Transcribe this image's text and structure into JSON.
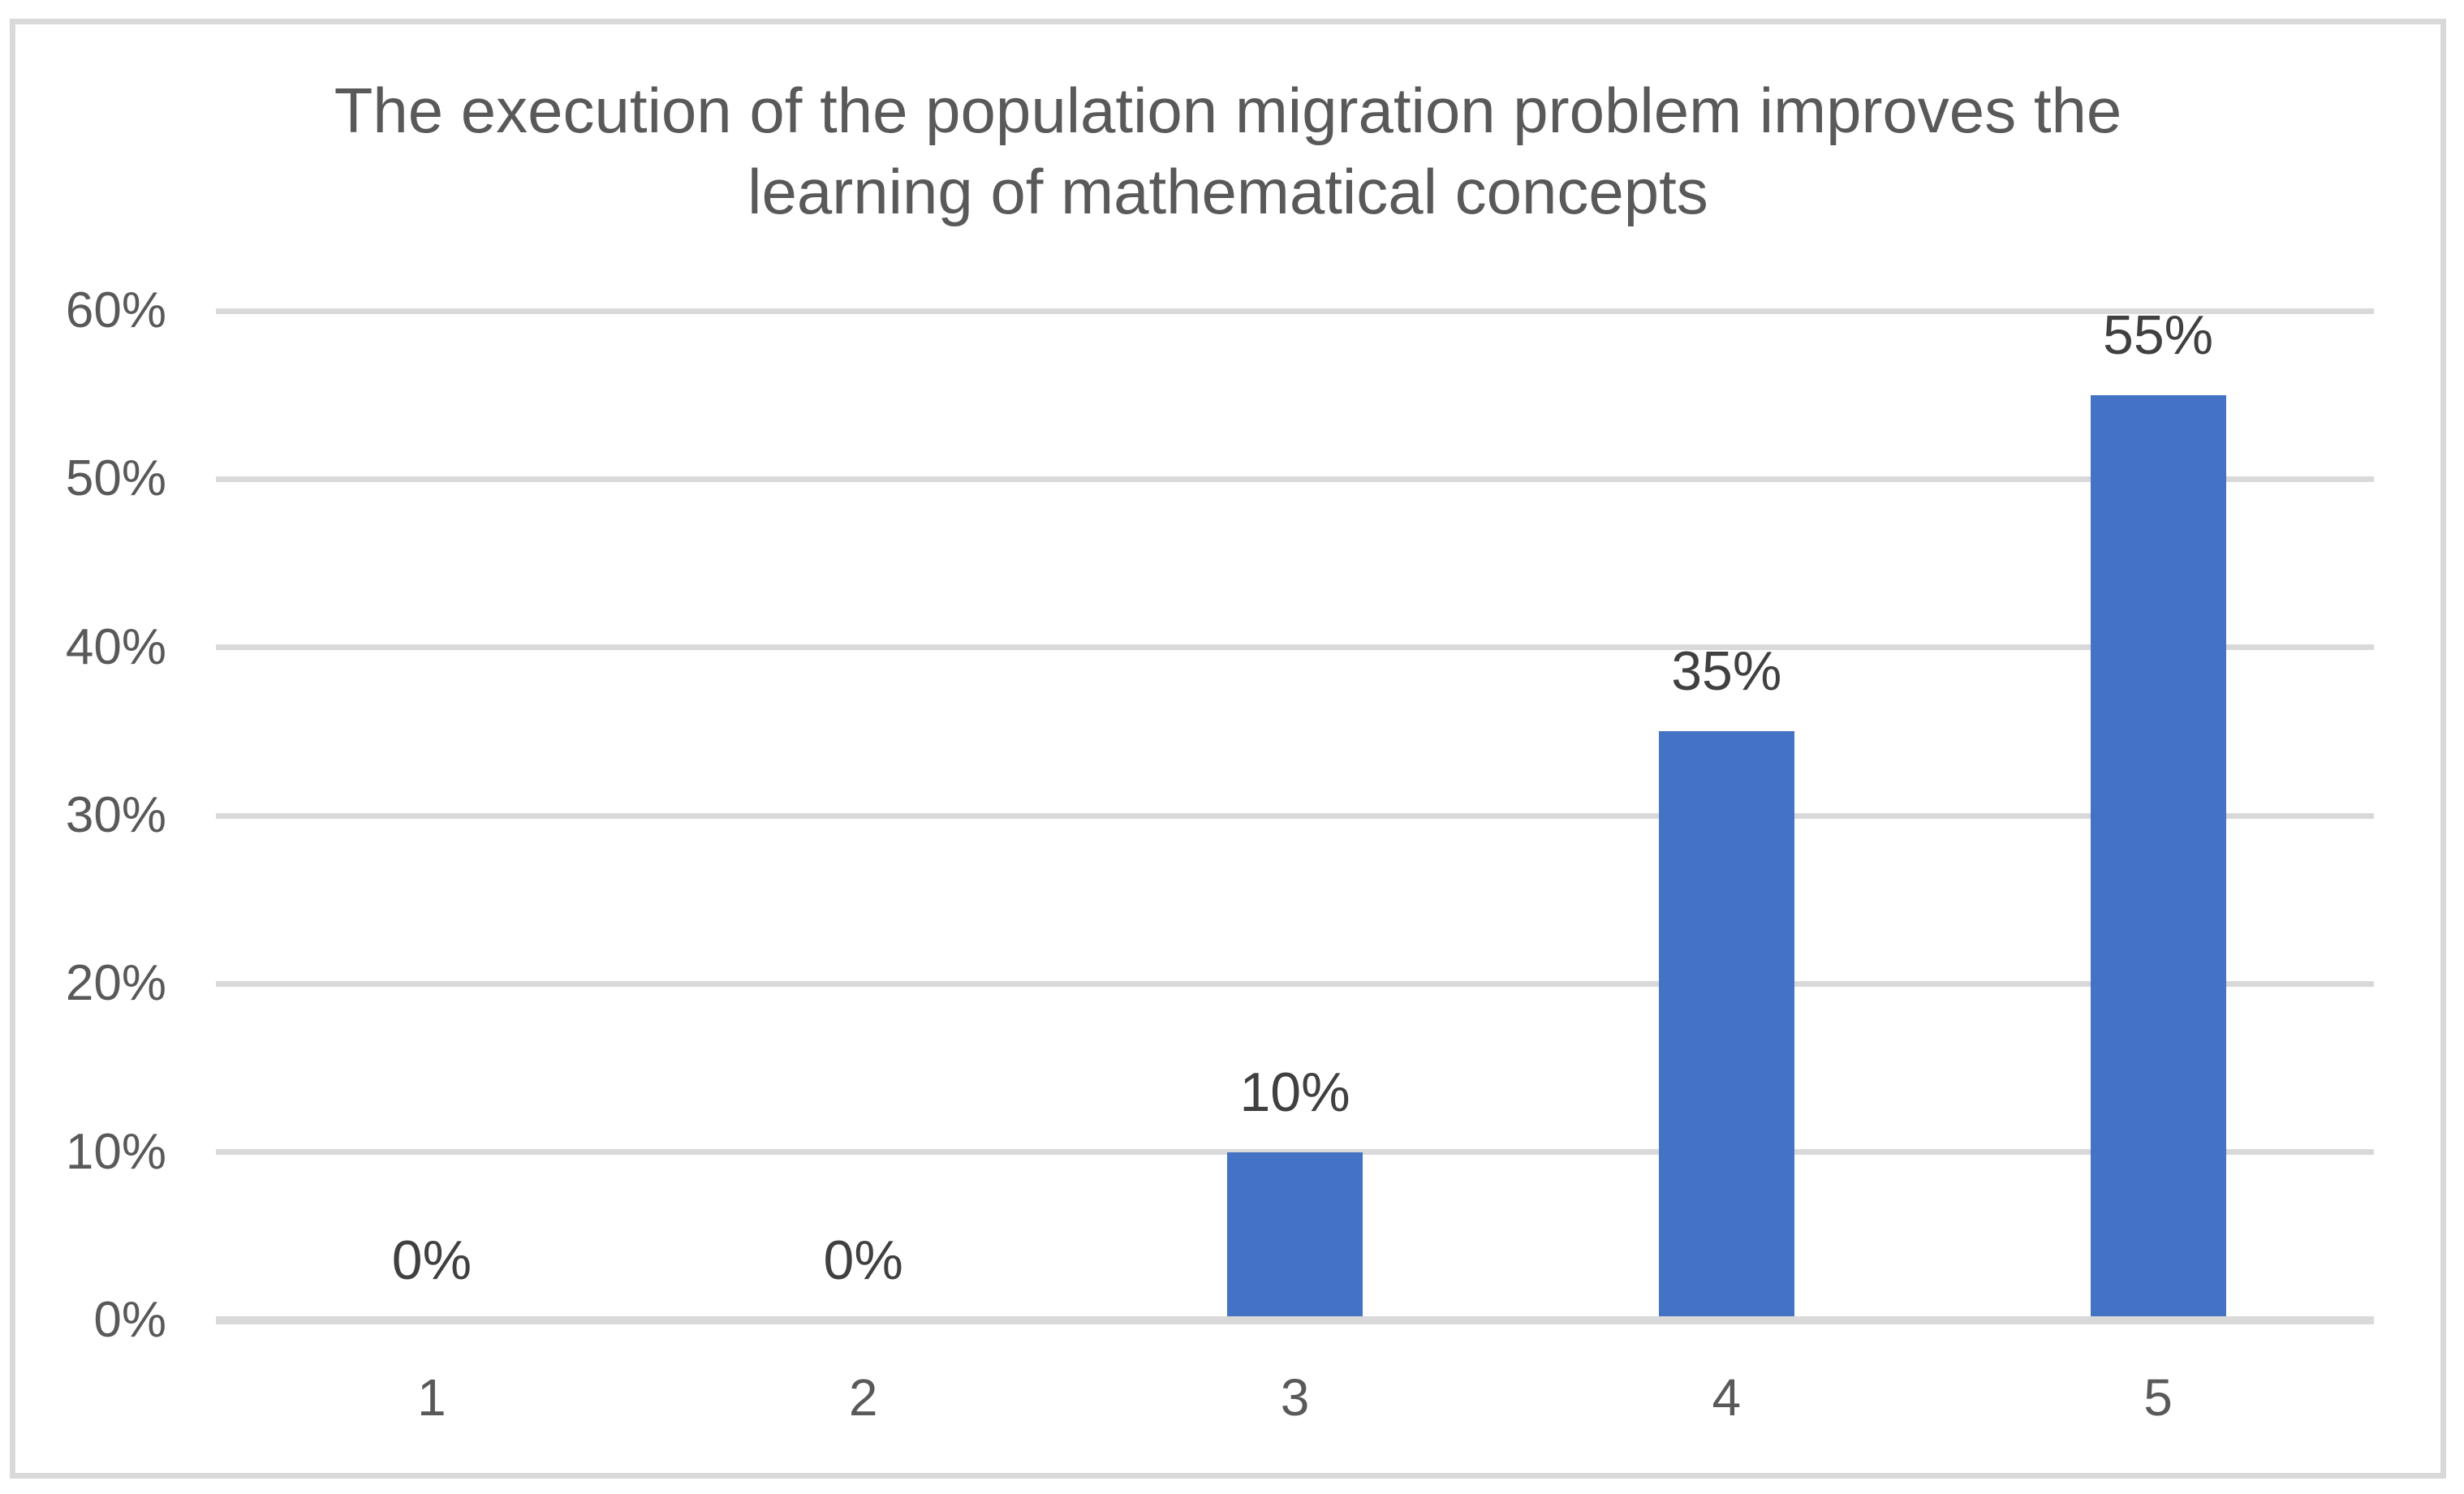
{
  "chart_data": {
    "type": "bar",
    "title": "The execution of the population migration problem improves the learning of mathematical concepts",
    "title_lines": [
      "The execution of the population migration problem improves the",
      "learning of mathematical concepts"
    ],
    "categories": [
      "1",
      "2",
      "3",
      "4",
      "5"
    ],
    "values": [
      0,
      0,
      10,
      35,
      55
    ],
    "data_labels": [
      "0%",
      "0%",
      "10%",
      "35%",
      "55%"
    ],
    "ytick_values": [
      0,
      10,
      20,
      30,
      40,
      50,
      60
    ],
    "ytick_labels": [
      "0%",
      "10%",
      "20%",
      "30%",
      "40%",
      "50%",
      "60%"
    ],
    "ylim": [
      0,
      60
    ],
    "xlabel": "",
    "ylabel": "",
    "legend": "none",
    "grid": true,
    "colors": {
      "bar": "#4472C4",
      "title_text": "#595959",
      "axis_text": "#595959",
      "data_label_text": "#404040",
      "gridline": "#D9D9D9",
      "axis_line": "#D9D9D9",
      "frame_border": "#D9D9D9",
      "background": "#FFFFFF"
    }
  }
}
